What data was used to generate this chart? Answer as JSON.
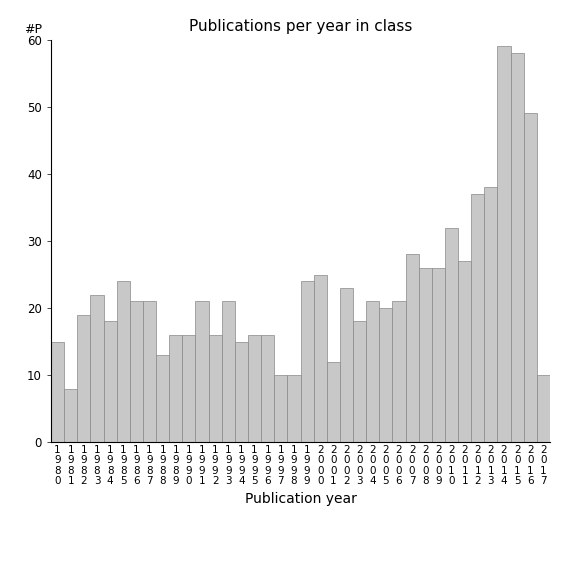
{
  "title": "Publications per year in class",
  "xlabel": "Publication year",
  "ylabel": "#P",
  "years": [
    1980,
    1981,
    1982,
    1983,
    1984,
    1985,
    1986,
    1987,
    1988,
    1989,
    1990,
    1991,
    1992,
    1993,
    1994,
    1995,
    1996,
    1997,
    1998,
    1999,
    2000,
    2001,
    2002,
    2003,
    2004,
    2005,
    2006,
    2007,
    2008,
    2009,
    2010,
    2011,
    2012,
    2013,
    2014,
    2015,
    2016,
    2017
  ],
  "values": [
    15,
    8,
    19,
    22,
    18,
    24,
    21,
    21,
    13,
    16,
    16,
    21,
    16,
    21,
    15,
    16,
    16,
    10,
    10,
    24,
    25,
    12,
    23,
    18,
    21,
    20,
    21,
    28,
    26,
    26,
    32,
    27,
    37,
    38,
    59,
    58,
    49,
    10
  ],
  "bar_color": "#c8c8c8",
  "bar_edgecolor": "#888888",
  "ylim": [
    0,
    60
  ],
  "yticks": [
    0,
    10,
    20,
    30,
    40,
    50,
    60
  ],
  "background_color": "#ffffff",
  "title_fontsize": 11,
  "xlabel_fontsize": 10,
  "ylabel_fontsize": 9,
  "tick_fontsize": 7.5
}
